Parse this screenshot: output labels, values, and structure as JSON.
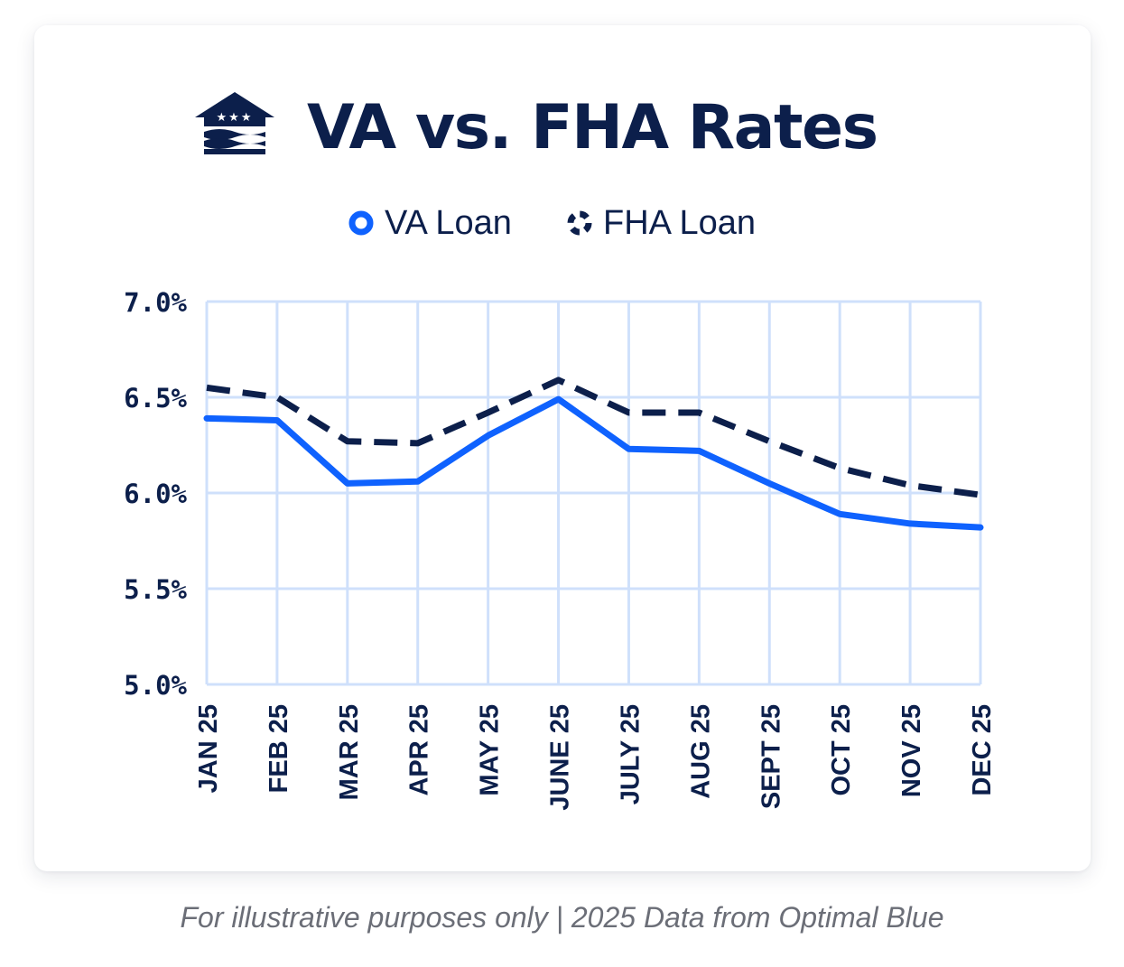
{
  "header": {
    "title": "VA vs. FHA Rates",
    "logo_icon": "house-flag-logo-icon"
  },
  "legend": {
    "items": [
      {
        "label": "VA Loan",
        "style": "solid",
        "color": "#0f62fe",
        "icon": "circle-marker-icon"
      },
      {
        "label": "FHA Loan",
        "style": "dashed",
        "color": "#0c1f4b",
        "icon": "dashed-circle-marker-icon"
      }
    ]
  },
  "chart_data": {
    "type": "line",
    "title": "VA vs. FHA Rates",
    "xlabel": "",
    "ylabel": "",
    "categories": [
      "JAN 25",
      "FEB 25",
      "MAR 25",
      "APR 25",
      "MAY 25",
      "JUNE 25",
      "JULY 25",
      "AUG 25",
      "SEPT 25",
      "OCT 25",
      "NOV 25",
      "DEC 25"
    ],
    "y_ticks": [
      "7.0%",
      "6.5%",
      "6.0%",
      "5.5%",
      "5.0%"
    ],
    "ylim": [
      5.0,
      7.0
    ],
    "grid": true,
    "legend_position": "top-center",
    "series": [
      {
        "name": "VA Loan",
        "style": "solid",
        "color": "#0f62fe",
        "values": [
          6.39,
          6.38,
          6.05,
          6.06,
          6.3,
          6.49,
          6.23,
          6.22,
          6.05,
          5.89,
          5.84,
          5.82
        ]
      },
      {
        "name": "FHA Loan",
        "style": "dashed",
        "color": "#0c1f4b",
        "values": [
          6.55,
          6.5,
          6.27,
          6.26,
          6.42,
          6.59,
          6.42,
          6.42,
          6.27,
          6.13,
          6.04,
          5.99
        ]
      }
    ],
    "grid_color": "#cfe0fb"
  },
  "footer": {
    "note": "For illustrative purposes only | 2025 Data from Optimal Blue"
  }
}
